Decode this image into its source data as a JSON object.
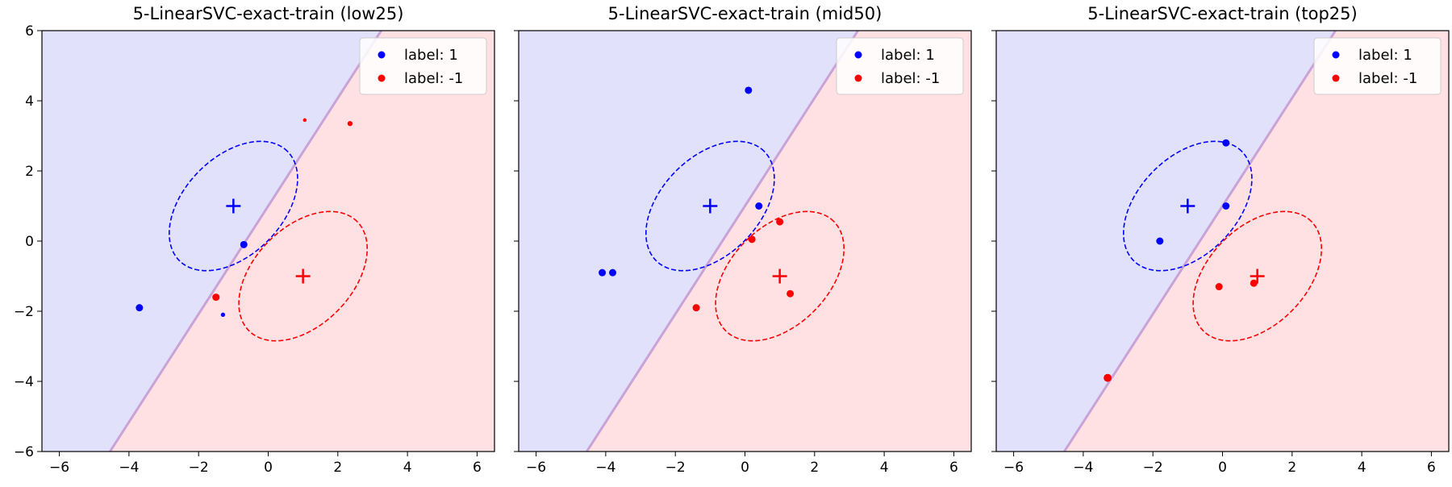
{
  "chart_data": [
    {
      "type": "scatter",
      "title": "5-LinearSVC-exact-train (low25)",
      "xlim": [
        -6.5,
        6.5
      ],
      "ylim": [
        -6,
        6
      ],
      "xticks": [
        -6,
        -4,
        -2,
        0,
        2,
        4,
        6
      ],
      "yticks": [
        -6,
        -4,
        -2,
        0,
        2,
        4,
        6
      ],
      "xtick_labels": [
        "−6",
        "−4",
        "−2",
        "0",
        "2",
        "4",
        "6"
      ],
      "ytick_labels": [
        "−6",
        "−4",
        "−2",
        "0",
        "2",
        "4",
        "6"
      ],
      "decision_boundary": {
        "slope": 1.54,
        "intercept": 1.0
      },
      "regions": {
        "upper_left": "label: 1",
        "lower_right": "label: -1"
      },
      "centers": [
        {
          "label": "1",
          "x": -1,
          "y": 1
        },
        {
          "label": "-1",
          "x": 1,
          "y": -1
        }
      ],
      "ellipses": [
        {
          "label": "1",
          "cx": -1,
          "cy": 1,
          "rx": 2.2,
          "ry": 1.4,
          "angle_deg": 45
        },
        {
          "label": "-1",
          "cx": 1,
          "cy": -1,
          "rx": 2.2,
          "ry": 1.4,
          "angle_deg": 45
        }
      ],
      "series": [
        {
          "name": "label: 1",
          "points": [
            [
              -0.7,
              -0.1,
              1
            ],
            [
              -3.7,
              -1.9,
              1
            ],
            [
              -1.3,
              -2.1,
              0.6
            ]
          ]
        },
        {
          "name": "label: -1",
          "points": [
            [
              -1.5,
              -1.6,
              1
            ],
            [
              1.05,
              3.45,
              0.5
            ],
            [
              2.35,
              3.35,
              0.7
            ]
          ]
        }
      ],
      "legend": "top-right"
    },
    {
      "type": "scatter",
      "title": "5-LinearSVC-exact-train (mid50)",
      "xlim": [
        -6.5,
        6.5
      ],
      "ylim": [
        -6,
        6
      ],
      "xticks": [
        -6,
        -4,
        -2,
        0,
        2,
        4,
        6
      ],
      "yticks": [
        -6,
        -4,
        -2,
        0,
        2,
        4,
        6
      ],
      "xtick_labels": [
        "−6",
        "−4",
        "−2",
        "0",
        "2",
        "4",
        "6"
      ],
      "ytick_labels": [
        "",
        "",
        "",
        "",
        "",
        "",
        ""
      ],
      "decision_boundary": {
        "slope": 1.54,
        "intercept": 1.0
      },
      "regions": {
        "upper_left": "label: 1",
        "lower_right": "label: -1"
      },
      "centers": [
        {
          "label": "1",
          "x": -1,
          "y": 1
        },
        {
          "label": "-1",
          "x": 1,
          "y": -1
        }
      ],
      "ellipses": [
        {
          "label": "1",
          "cx": -1,
          "cy": 1,
          "rx": 2.2,
          "ry": 1.4,
          "angle_deg": 45
        },
        {
          "label": "-1",
          "cx": 1,
          "cy": -1,
          "rx": 2.2,
          "ry": 1.4,
          "angle_deg": 45
        }
      ],
      "series": [
        {
          "name": "label: 1",
          "points": [
            [
              0.1,
              4.3,
              1
            ],
            [
              0.4,
              1.0,
              1
            ],
            [
              -4.1,
              -0.9,
              1
            ],
            [
              -3.8,
              -0.9,
              1
            ]
          ]
        },
        {
          "name": "label: -1",
          "points": [
            [
              1.0,
              0.55,
              1
            ],
            [
              0.2,
              0.05,
              1
            ],
            [
              -1.4,
              -1.9,
              1
            ],
            [
              1.3,
              -1.5,
              1
            ]
          ]
        }
      ],
      "legend": "top-right"
    },
    {
      "type": "scatter",
      "title": "5-LinearSVC-exact-train (top25)",
      "xlim": [
        -6.5,
        6.5
      ],
      "ylim": [
        -6,
        6
      ],
      "xticks": [
        -6,
        -4,
        -2,
        0,
        2,
        4,
        6
      ],
      "yticks": [
        -6,
        -4,
        -2,
        0,
        2,
        4,
        6
      ],
      "xtick_labels": [
        "−6",
        "−4",
        "−2",
        "0",
        "2",
        "4",
        "6"
      ],
      "ytick_labels": [
        "",
        "",
        "",
        "",
        "",
        "",
        ""
      ],
      "decision_boundary": {
        "slope": 1.54,
        "intercept": 1.0
      },
      "regions": {
        "upper_left": "label: 1",
        "lower_right": "label: -1"
      },
      "centers": [
        {
          "label": "1",
          "x": -1,
          "y": 1
        },
        {
          "label": "-1",
          "x": 1,
          "y": -1
        }
      ],
      "ellipses": [
        {
          "label": "1",
          "cx": -1,
          "cy": 1,
          "rx": 2.2,
          "ry": 1.4,
          "angle_deg": 45
        },
        {
          "label": "-1",
          "cx": 1,
          "cy": -1,
          "rx": 2.2,
          "ry": 1.4,
          "angle_deg": 45
        }
      ],
      "series": [
        {
          "name": "label: 1",
          "points": [
            [
              0.1,
              2.8,
              1
            ],
            [
              0.1,
              1.0,
              1
            ],
            [
              -1.8,
              0.0,
              1
            ]
          ]
        },
        {
          "name": "label: -1",
          "points": [
            [
              -0.1,
              -1.3,
              1
            ],
            [
              0.9,
              -1.2,
              1
            ],
            [
              -3.3,
              -3.9,
              1.1
            ]
          ]
        }
      ],
      "legend": "top-right"
    }
  ],
  "colors": {
    "label_1": "#0000ff",
    "label_neg1": "#ff0000",
    "region_1": "#e1e1fc",
    "region_neg1": "#ffe1e4",
    "boundary": "#c9a2d6"
  }
}
